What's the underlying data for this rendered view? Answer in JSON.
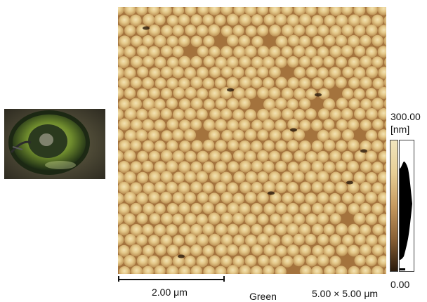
{
  "thumbnail": {
    "icon": "sample-photo-thumbnail"
  },
  "image": {
    "icon": "afm-topography-particles"
  },
  "colorscale": {
    "max": "300.00",
    "unit": "[nm]",
    "min": "0.00",
    "colors": [
      "#f1e5bd",
      "#e8cf95",
      "#c79a5f",
      "#8a6136",
      "#2a1a0b"
    ]
  },
  "scalebar": {
    "label": "2.00 μm"
  },
  "channel": "Green",
  "field_of_view": "5.00 × 5.00 μm"
}
